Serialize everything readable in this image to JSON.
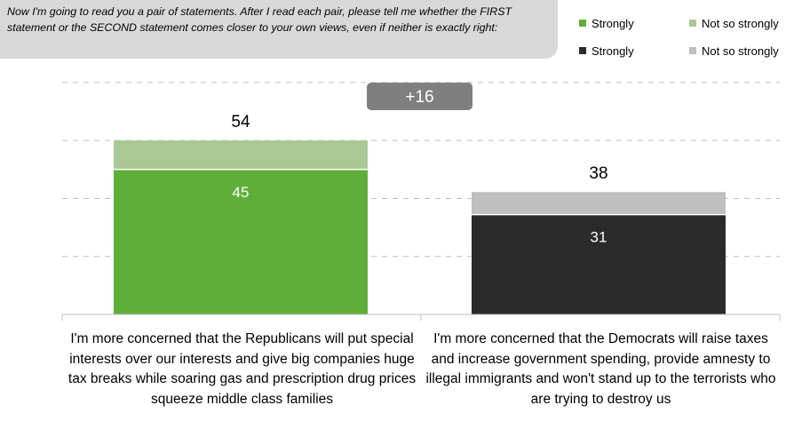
{
  "prompt": {
    "text": "Now I'm going to read you a pair of statements. After I read each pair, please tell me whether the FIRST statement or the SECOND statement comes closer to your own views, even if neither is exactly right:"
  },
  "legend": [
    {
      "label": "Strongly",
      "color": "#5fae3a"
    },
    {
      "label": "Not so strongly",
      "color": "#a8c896"
    },
    {
      "label": "Strongly",
      "color": "#2b2b2b"
    },
    {
      "label": "Not so strongly",
      "color": "#bfbfbf"
    }
  ],
  "difference_badge": "+16",
  "chart_data": {
    "type": "bar",
    "stacked": true,
    "categories": [
      "I'm more concerned that the Republicans will put special interests over our interests and give big companies huge tax breaks while soaring gas and prescription drug prices squeeze middle class families",
      "I'm more concerned that the Democrats will raise taxes and increase government spending, provide amnesty to illegal immigrants and won't stand up to the terrorists who are trying to destroy us"
    ],
    "bars": [
      {
        "strongly": 45,
        "total": 54,
        "strong_color": "#5fae3a",
        "light_color": "#a8c896"
      },
      {
        "strongly": 31,
        "total": 38,
        "strong_color": "#2b2b2b",
        "light_color": "#bfbfbf"
      }
    ],
    "strongly_labels": [
      "45",
      "31"
    ],
    "total_labels": [
      "54",
      "38"
    ],
    "ylim": [
      0,
      75
    ],
    "grid": true,
    "legend_position": "top-right"
  }
}
